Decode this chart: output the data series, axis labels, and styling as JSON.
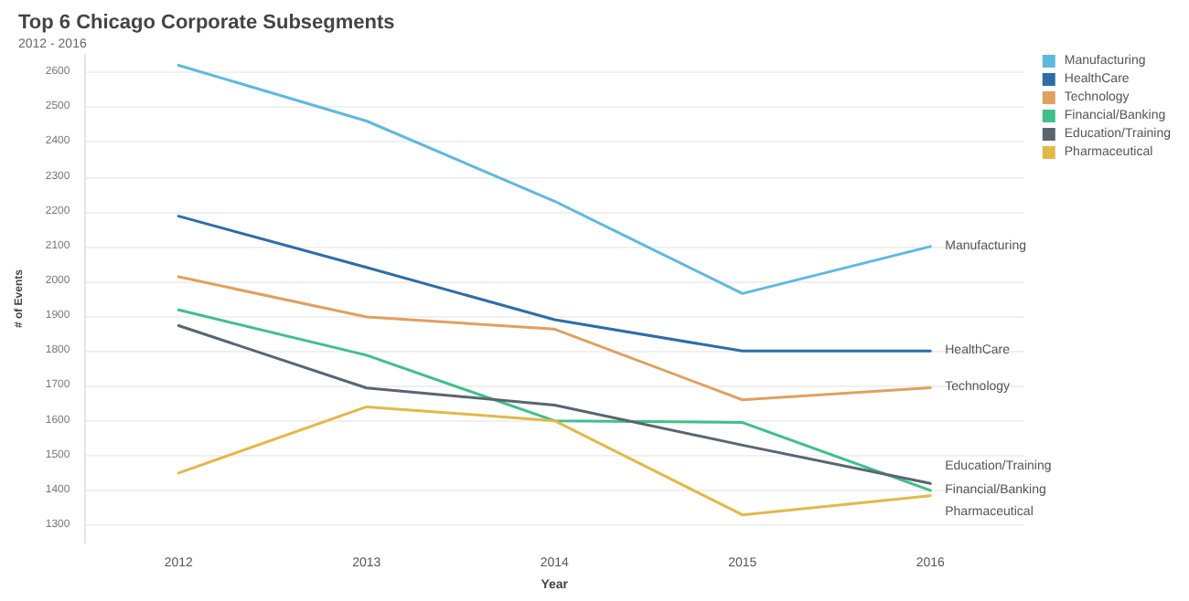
{
  "chart_data": {
    "type": "line",
    "title": "Top 6 Chicago Corporate Subsegments",
    "subtitle": "2012 - 2016",
    "xlabel": "Year",
    "ylabel": "# of Events",
    "categories": [
      "2012",
      "2013",
      "2014",
      "2015",
      "2016"
    ],
    "series": [
      {
        "name": "Manufacturing",
        "color": "#5fb9dd",
        "values": [
          2620,
          2460,
          2230,
          1965,
          2100
        ]
      },
      {
        "name": "HealthCare",
        "color": "#2e6da8",
        "values": [
          2187,
          2040,
          1890,
          1800,
          1800
        ]
      },
      {
        "name": "Technology",
        "color": "#e0a060",
        "values": [
          2013,
          1898,
          1863,
          1660,
          1695
        ]
      },
      {
        "name": "Financial/Banking",
        "color": "#3fbf8a",
        "values": [
          1918,
          1788,
          1600,
          1595,
          1400
        ]
      },
      {
        "name": "Education/Training",
        "color": "#5a6570",
        "values": [
          1873,
          1694,
          1645,
          1530,
          1420
        ]
      },
      {
        "name": "Pharmaceutical",
        "color": "#e3b84a",
        "values": [
          1450,
          1640,
          1600,
          1330,
          1385
        ]
      }
    ],
    "ylim": [
      1250,
      2650
    ],
    "yticks": [
      1300,
      1400,
      1500,
      1600,
      1700,
      1800,
      1900,
      2000,
      2100,
      2200,
      2300,
      2400,
      2500,
      2600
    ],
    "grid": "y",
    "legend": "top right",
    "marker": "none",
    "line_style": "solid"
  }
}
